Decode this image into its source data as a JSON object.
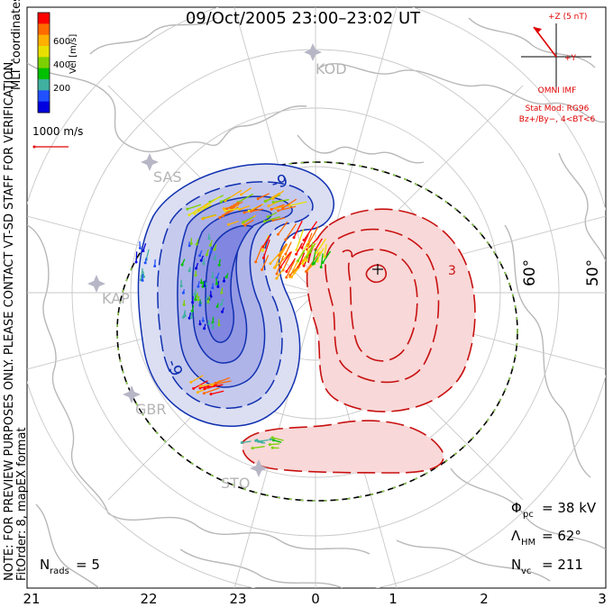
{
  "title": "09/Oct/2005 23:00–23:02 UT",
  "coord_system": "MLT coordinates",
  "colorbar": {
    "label": "Vel [m/s]",
    "ticks": [
      "600",
      "400",
      "200"
    ],
    "colors": [
      "#ff0000",
      "#ff6a00",
      "#ffb000",
      "#e8e000",
      "#7cd000",
      "#00c000",
      "#40b0a0",
      "#2050ff",
      "#0000e0"
    ]
  },
  "velocity_scale": "1000 m/s",
  "disclaimer": "NOTE: FOR PREVIEW PURPOSES ONLY. PLEASE CONTACT VT-SD STAFF FOR VERIFICATION.",
  "fit_info": "FitOrder: 8, mapEX format",
  "imf": {
    "bz_label": "+Z (5 nT)",
    "by_label": "+Y",
    "source": "OMNI IMF",
    "model": "Stat Mod: RG96",
    "bin": "Bz+/By−, 4<BT<6"
  },
  "stations": [
    "KOD",
    "SAS",
    "KAP",
    "GBR",
    "STO"
  ],
  "latitude_labels": [
    "60°",
    "50°"
  ],
  "mlt_ticks": [
    "21",
    "22",
    "23",
    "0",
    "1",
    "2",
    "3"
  ],
  "contour_labels": [
    "-9",
    "-9",
    "-3",
    "3"
  ],
  "stats": {
    "phi_pc": {
      "sym": "Φ",
      "sub": "pc",
      "value": "= 38 kV"
    },
    "lambda_hm": {
      "sym": "Λ",
      "sub": "HM",
      "value": "= 62°"
    },
    "n_vc": {
      "sym": "N",
      "sub": "vc",
      "value": "= 211"
    },
    "n_rads": {
      "sym": "N",
      "sub": "rads",
      "value": "= 5"
    }
  },
  "colors": {
    "negative_cell": "#1030b0",
    "positive_cell": "#d01010",
    "frame": "#000000",
    "coast": "#b8b8b8",
    "grid": "#c8c8c8",
    "hm_boundary": "#000000",
    "imf_text": "#e00000"
  }
}
